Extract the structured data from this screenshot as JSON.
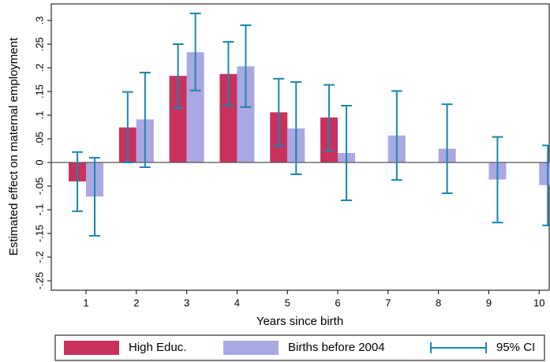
{
  "chart_data": {
    "type": "bar",
    "y_label": "Estimated effect on maternal employment",
    "x_label": "Years since birth",
    "x": [
      1,
      2,
      3,
      4,
      5,
      6,
      7,
      8,
      9,
      10
    ],
    "xlim": [
      0.31,
      10.2
    ],
    "xticks": [
      1,
      2,
      3,
      4,
      5,
      6,
      7,
      8,
      9,
      10
    ],
    "ylim": [
      -0.27,
      0.335
    ],
    "yticks": [
      {
        "value": 0.3,
        "label": ".3"
      },
      {
        "value": 0.25,
        "label": ".25"
      },
      {
        "value": 0.2,
        "label": ".2"
      },
      {
        "value": 0.15,
        "label": ".15"
      },
      {
        "value": 0.1,
        "label": ".1"
      },
      {
        "value": 0.05,
        "label": ".05"
      },
      0,
      {
        "value": -0.05,
        "label": "-.05"
      },
      {
        "value": -0.1,
        "label": "-.1"
      },
      {
        "value": -0.15,
        "label": "-.15"
      },
      {
        "value": -0.2,
        "label": "-.2"
      },
      {
        "value": -0.25,
        "label": "-.25"
      }
    ],
    "series": [
      {
        "name": "High Educ.",
        "color": "#c8325c",
        "values": [
          -0.04,
          0.074,
          0.183,
          0.187,
          0.106,
          0.095,
          null,
          null,
          null,
          null
        ],
        "ci_low": [
          -0.103,
          0.0,
          0.115,
          0.12,
          0.035,
          0.025,
          null,
          null,
          null,
          null
        ],
        "ci_high": [
          0.022,
          0.149,
          0.25,
          0.255,
          0.177,
          0.164,
          null,
          null,
          null,
          null
        ]
      },
      {
        "name": "Births before 2004",
        "color": "#aaa8e2",
        "values": [
          -0.072,
          0.091,
          0.233,
          0.203,
          0.072,
          0.02,
          0.057,
          0.029,
          -0.036,
          -0.048
        ],
        "ci_low": [
          -0.155,
          -0.01,
          0.152,
          0.117,
          -0.025,
          -0.08,
          -0.037,
          -0.065,
          -0.127,
          -0.133
        ],
        "ci_high": [
          0.01,
          0.19,
          0.315,
          0.29,
          0.17,
          0.12,
          0.151,
          0.123,
          0.054,
          0.036
        ]
      }
    ],
    "ci_label": "95% CI",
    "ci_color": "#1a86b2"
  }
}
